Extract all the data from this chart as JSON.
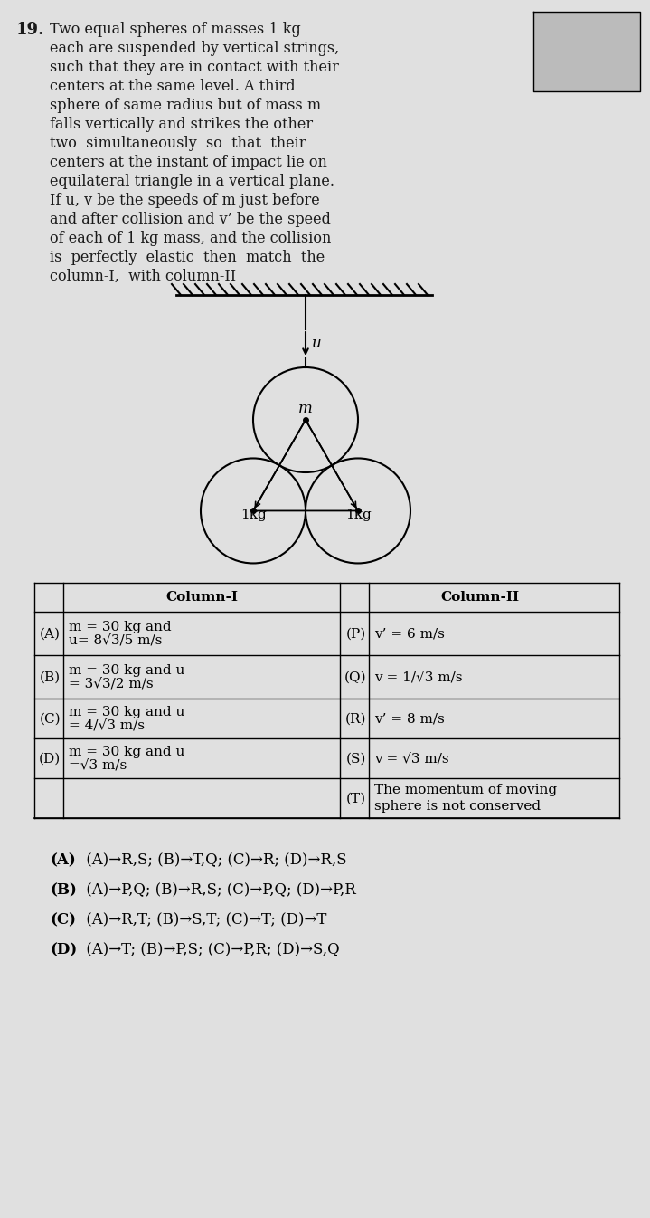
{
  "question_number": "19.",
  "bg_color": "#e0e0e0",
  "text_color": "#1a1a1a",
  "question_lines": [
    "Two equal spheres of masses 1 kg",
    "each are suspended by vertical strings,",
    "such that they are in contact with their",
    "centers at the same level. A third",
    "sphere of same radius but of mass m",
    "falls vertically and strikes the other",
    "two  simultaneously  so  that  their",
    "centers at the instant of impact lie on",
    "equilateral triangle in a vertical plane.",
    "If u, v be the speeds of m just before",
    "and after collision and v’ be the speed",
    "of each of 1 kg mass, and the collision",
    "is  perfectly  elastic  then  match  the",
    "column-I,  with column-II"
  ],
  "table_col1_header": "Column-I",
  "table_col2_header": "Column-II",
  "table_rows": [
    {
      "label": "(A)",
      "col1_line1": "m = 30 kg and",
      "col1_line2": "u= 8√3/5 m/s",
      "plabel": "(P)",
      "col2": "v’ = 6 m/s"
    },
    {
      "label": "(B)",
      "col1_line1": "m = 30 kg and u",
      "col1_line2": "= 3√3/2 m/s",
      "plabel": "(Q)",
      "col2": "v = 1/√3 m/s"
    },
    {
      "label": "(C)",
      "col1_line1": "m = 30 kg and u",
      "col1_line2": "= 4/√3 m/s",
      "plabel": "(R)",
      "col2": "v’ = 8 m/s"
    },
    {
      "label": "(D)",
      "col1_line1": "m = 30 kg and u",
      "col1_line2": "=√3 m/s",
      "plabel": "(S)",
      "col2": "v = √3 m/s"
    }
  ],
  "table_last_plabel": "(T)",
  "table_last_col2_line1": "The momentum of moving",
  "table_last_col2_line2": "sphere is not conserved",
  "answers": [
    [
      "(A)",
      " (A)→R,S; (B)→T,Q; (C)→R; (D)→R,S"
    ],
    [
      "(B)",
      " (A)→P,Q; (B)→R,S; (C)→P,Q; (D)→P,R"
    ],
    [
      "(C)",
      " (A)→R,T; (B)→S,T; (C)→T; (D)→T"
    ],
    [
      "(D)",
      " (A)→T; (B)→P,S; (C)→P,R; (D)→S,Q"
    ]
  ]
}
